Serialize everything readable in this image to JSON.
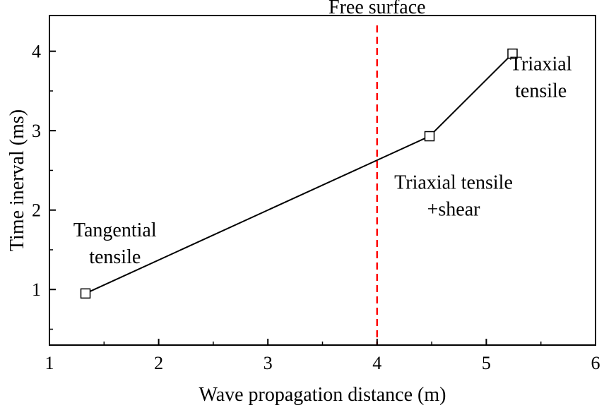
{
  "chart_data": {
    "type": "line",
    "title": "",
    "xlabel": "Wave propagation distance (m)",
    "ylabel": "Time inerval (ms)",
    "xlim": [
      1,
      6
    ],
    "ylim": [
      0.3,
      4.45
    ],
    "xticks": [
      1,
      2,
      3,
      4,
      5,
      6
    ],
    "yticks": [
      1,
      2,
      3,
      4
    ],
    "grid": false,
    "legend": "none",
    "series": [
      {
        "name": "Time interval",
        "marker": "open-square",
        "color": "#000000",
        "x": [
          1.33,
          4.48,
          5.24
        ],
        "y": [
          0.95,
          2.93,
          3.97
        ]
      }
    ],
    "reference_line": {
      "x": 4,
      "label": "Free surface",
      "color": "#ff0000",
      "style": "dashed"
    },
    "annotations": [
      {
        "lines": [
          "Tangential",
          "tensile"
        ],
        "x": 1.6,
        "y": 1.67
      },
      {
        "lines": [
          "Triaxial tensile",
          "+shear"
        ],
        "x": 4.7,
        "y": 2.27
      },
      {
        "lines": [
          "Triaxial",
          "tensile"
        ],
        "x": 5.5,
        "y": 3.76
      }
    ]
  }
}
